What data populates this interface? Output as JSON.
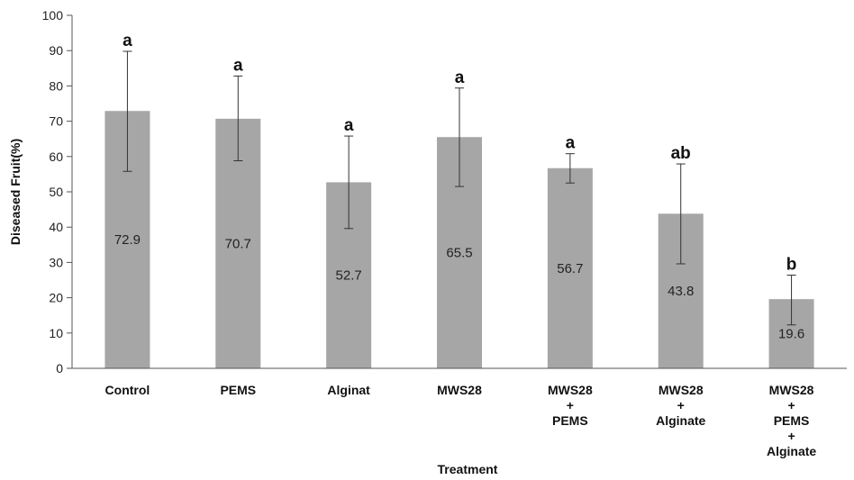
{
  "chart_data": {
    "type": "bar",
    "xlabel": "Treatment",
    "ylabel": "Diseased Fruit(%)",
    "ylim": [
      0,
      100
    ],
    "yticks": [
      0,
      10,
      20,
      30,
      40,
      50,
      60,
      70,
      80,
      90,
      100
    ],
    "grid": false,
    "bar_color": "#a6a6a6",
    "categories": [
      [
        "Control"
      ],
      [
        "PEMS"
      ],
      [
        "Alginat"
      ],
      [
        "MWS28"
      ],
      [
        "MWS28",
        "+",
        "PEMS"
      ],
      [
        "MWS28",
        "+",
        "Alginate"
      ],
      [
        "MWS28",
        "+",
        "PEMS",
        "+",
        "Alginate"
      ]
    ],
    "values": [
      72.9,
      70.7,
      52.7,
      65.5,
      56.7,
      43.8,
      19.6
    ],
    "value_labels": [
      "72.9",
      "70.7",
      "52.7",
      "65.5",
      "56.7",
      "43.8",
      "19.6"
    ],
    "error_upper": [
      89.8,
      82.8,
      65.8,
      79.4,
      60.8,
      57.9,
      26.4
    ],
    "error_lower": [
      55.8,
      58.8,
      39.6,
      51.5,
      52.5,
      29.6,
      12.3
    ],
    "significance": [
      "a",
      "a",
      "a",
      "a",
      "a",
      "ab",
      "b"
    ]
  }
}
